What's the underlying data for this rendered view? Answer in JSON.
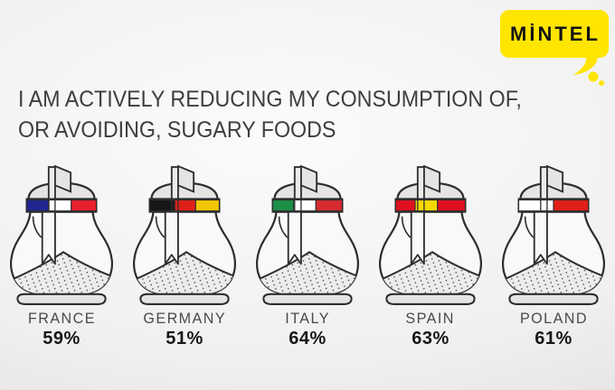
{
  "logo": {
    "text": "MİNTEL",
    "bubble_color": "#ffe500",
    "text_color": "#141414"
  },
  "title": {
    "line1": "I AM ACTIVELY REDUCING MY CONSUMPTION OF,",
    "line2": "OR AVOIDING, SUGARY FOODS"
  },
  "chart_data": {
    "type": "bar",
    "title": "I am actively reducing my consumption of, or avoiding, sugary foods",
    "categories": [
      "FRANCE",
      "GERMANY",
      "ITALY",
      "SPAIN",
      "POLAND"
    ],
    "values": [
      59,
      51,
      64,
      63,
      61
    ],
    "unit": "%",
    "presentation": "pictogram: sugar dispensers with national flag bands, value printed under each"
  },
  "countries": [
    {
      "name": "FRANCE",
      "percent": "59%",
      "flag_stripes": [
        {
          "color": "#20258f",
          "frac": 0.32
        },
        {
          "color": "#ffffff",
          "frac": 0.32
        },
        {
          "color": "#e8202e",
          "frac": 0.36
        }
      ]
    },
    {
      "name": "GERMANY",
      "percent": "51%",
      "flag_stripes": [
        {
          "color": "#161616",
          "frac": 0.36
        },
        {
          "color": "#e02018",
          "frac": 0.3
        },
        {
          "color": "#f4c600",
          "frac": 0.34
        }
      ]
    },
    {
      "name": "ITALY",
      "percent": "64%",
      "flag_stripes": [
        {
          "color": "#1d9048",
          "frac": 0.3
        },
        {
          "color": "#ffffff",
          "frac": 0.32
        },
        {
          "color": "#d52b31",
          "frac": 0.38
        }
      ]
    },
    {
      "name": "SPAIN",
      "percent": "63%",
      "flag_stripes": [
        {
          "color": "#de1021",
          "frac": 0.28
        },
        {
          "color": "#f6d900",
          "frac": 0.32
        },
        {
          "color": "#de1021",
          "frac": 0.4
        }
      ]
    },
    {
      "name": "POLAND",
      "percent": "61%",
      "flag_stripes": [
        {
          "color": "#ffffff",
          "frac": 0.5
        },
        {
          "color": "#e02018",
          "frac": 0.5
        }
      ]
    }
  ],
  "colors": {
    "outline": "#2e2e2e",
    "lid": "#e4e4e4",
    "body": "#f9f9f9",
    "sugar": "#ececec",
    "sugar_dot": "#4a4a4a",
    "band_background": "#ffffff",
    "background_light": "#fbfbfb",
    "background_dark": "#dadada"
  }
}
